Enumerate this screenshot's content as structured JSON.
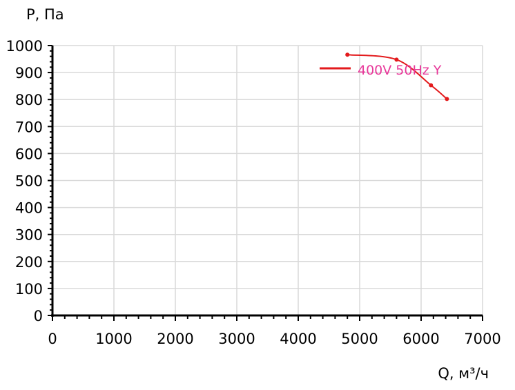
{
  "colors": {
    "series": "#e31a1c",
    "legend_text": "#e8389a",
    "grid": "#d9d9d9",
    "axis": "#000000",
    "background": "#ffffff"
  },
  "chart_data": {
    "type": "line",
    "title": "",
    "xlabel": "Q, м³/ч",
    "ylabel": "P, Па",
    "xlim": [
      0,
      7000
    ],
    "ylim": [
      0,
      1000
    ],
    "x_ticks": [
      0,
      1000,
      2000,
      3000,
      4000,
      5000,
      6000,
      7000
    ],
    "y_ticks": [
      0,
      100,
      200,
      300,
      400,
      500,
      600,
      700,
      800,
      900,
      1000
    ],
    "grid": true,
    "legend_position": "top-right",
    "series": [
      {
        "name": "400V 50Hz Y",
        "x": [
          4800,
          5600,
          6160,
          6420
        ],
        "y": [
          966,
          948,
          853,
          802
        ]
      }
    ]
  }
}
